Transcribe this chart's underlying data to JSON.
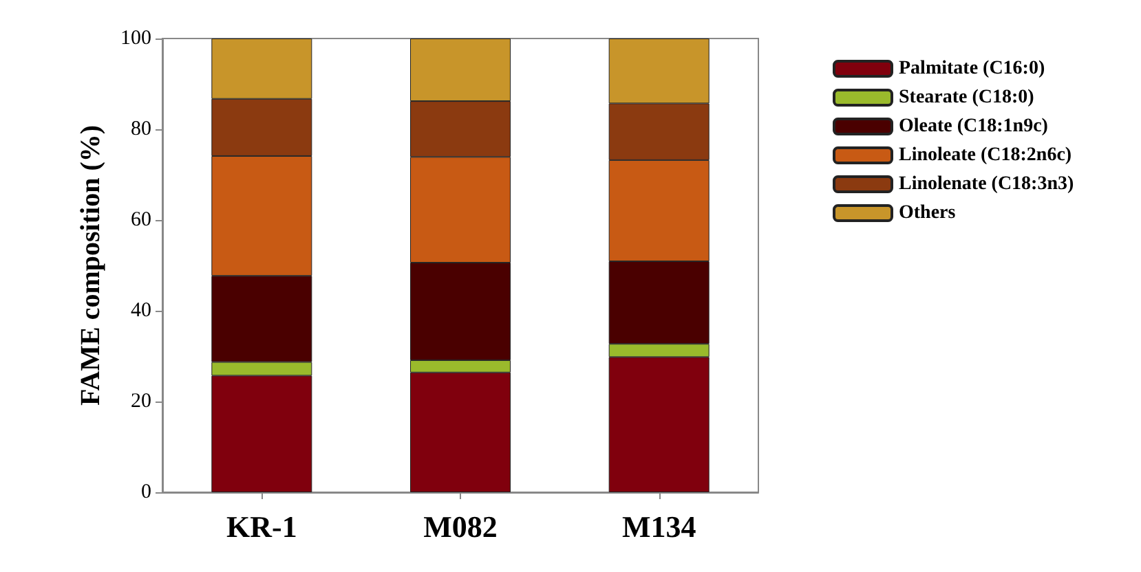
{
  "chart_data": {
    "type": "bar",
    "stacked": true,
    "ylabel": "FAME composition (%)",
    "categories": [
      "KR-1",
      "M082",
      "M134"
    ],
    "series": [
      {
        "name": "Palmitate (C16:0)",
        "color": "#80000d",
        "values": [
          25.7,
          26.4,
          29.8
        ]
      },
      {
        "name": "Stearate (C18:0)",
        "color": "#9aba2c",
        "values": [
          3.0,
          2.7,
          2.9
        ]
      },
      {
        "name": "Oleate (C18:1n9c)",
        "color": "#4a0000",
        "values": [
          19.0,
          21.5,
          18.2
        ]
      },
      {
        "name": "Linoleate (C18:2n6c)",
        "color": "#c85a14",
        "values": [
          26.4,
          23.3,
          22.3
        ]
      },
      {
        "name": "Linolenate (C18:3n3)",
        "color": "#8b3a10",
        "values": [
          12.6,
          12.3,
          12.5
        ]
      },
      {
        "name": "Others",
        "color": "#c8952a",
        "values": [
          13.3,
          13.8,
          14.3
        ]
      }
    ],
    "ylim": [
      0,
      100
    ],
    "yticks": [
      0,
      20,
      40,
      60,
      80,
      100
    ],
    "grid": false,
    "legend": "right"
  }
}
